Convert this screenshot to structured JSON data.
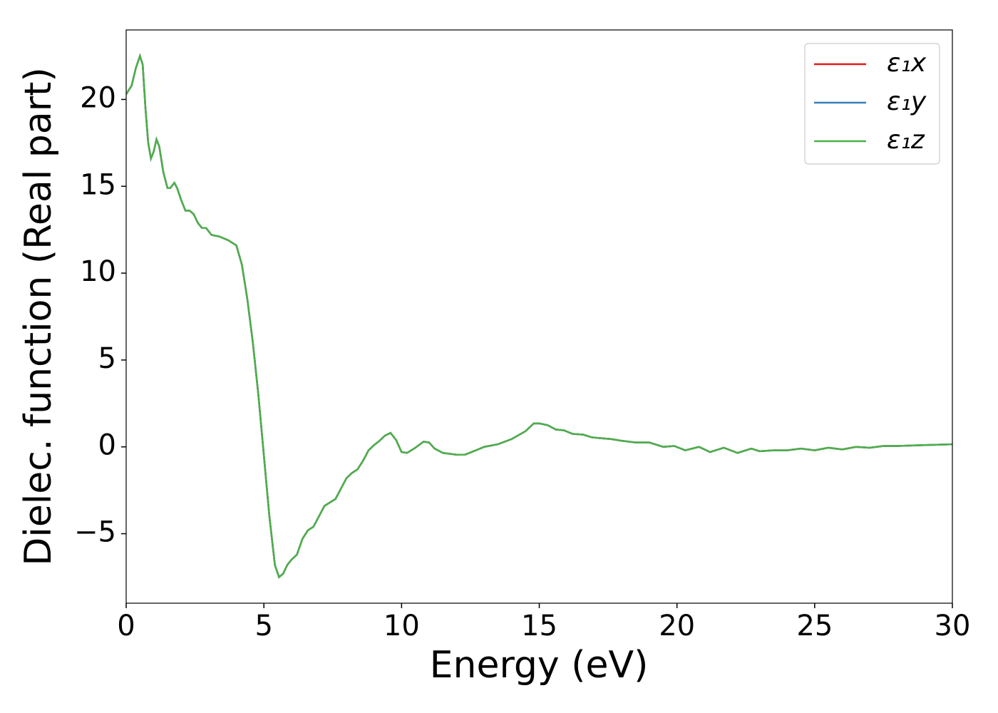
{
  "chart_data": {
    "type": "line",
    "xlabel": "Energy (eV)",
    "ylabel": "Dielec. function (Real part)",
    "xlim": [
      0,
      30
    ],
    "ylim": [
      -9,
      24
    ],
    "xticks": [
      0,
      5,
      10,
      15,
      20,
      25,
      30
    ],
    "yticks": [
      {
        "value": -5,
        "label": "−5"
      },
      0,
      5,
      10,
      15,
      20
    ],
    "grid": false,
    "legend": "upper right",
    "x": [
      0,
      0.2,
      0.35,
      0.5,
      0.6,
      0.7,
      0.8,
      0.9,
      1.0,
      1.1,
      1.2,
      1.35,
      1.5,
      1.6,
      1.75,
      1.85,
      2.0,
      2.15,
      2.3,
      2.45,
      2.6,
      2.75,
      2.9,
      3.1,
      3.4,
      3.7,
      4.0,
      4.2,
      4.4,
      4.6,
      4.8,
      5.0,
      5.2,
      5.4,
      5.55,
      5.7,
      5.85,
      6.0,
      6.2,
      6.4,
      6.6,
      6.8,
      7.0,
      7.2,
      7.4,
      7.6,
      7.8,
      8.0,
      8.2,
      8.4,
      8.6,
      8.8,
      9.0,
      9.2,
      9.4,
      9.6,
      9.8,
      10.0,
      10.2,
      10.5,
      10.8,
      11.0,
      11.2,
      11.5,
      12.0,
      12.3,
      12.7,
      13.0,
      13.5,
      14.0,
      14.5,
      14.8,
      15.0,
      15.3,
      15.6,
      15.9,
      16.2,
      16.6,
      16.9,
      17.2,
      17.6,
      18.0,
      18.5,
      19.0,
      19.5,
      19.9,
      20.3,
      20.8,
      21.2,
      21.7,
      22.2,
      22.7,
      23.0,
      23.5,
      24.0,
      24.5,
      25.0,
      25.5,
      26.0,
      26.5,
      27.0,
      27.5,
      28.0,
      29.0,
      30.0
    ],
    "series": [
      {
        "name": "ε₁x",
        "color": "#e41a1c",
        "values": [
          20.3,
          20.8,
          21.8,
          22.5,
          22.0,
          19.5,
          17.5,
          16.6,
          17.0,
          17.7,
          17.3,
          15.8,
          14.9,
          14.9,
          15.2,
          14.9,
          14.2,
          13.6,
          13.6,
          13.4,
          12.9,
          12.6,
          12.6,
          12.2,
          12.1,
          11.9,
          11.6,
          10.5,
          8.5,
          6.0,
          3.0,
          -0.5,
          -4.0,
          -6.8,
          -7.5,
          -7.3,
          -6.8,
          -6.5,
          -6.2,
          -5.3,
          -4.8,
          -4.6,
          -4.0,
          -3.4,
          -3.2,
          -3.0,
          -2.4,
          -1.8,
          -1.5,
          -1.3,
          -0.8,
          -0.2,
          0.1,
          0.35,
          0.65,
          0.8,
          0.4,
          -0.3,
          -0.35,
          -0.05,
          0.3,
          0.25,
          -0.1,
          -0.35,
          -0.45,
          -0.45,
          -0.2,
          0.0,
          0.15,
          0.45,
          0.9,
          1.35,
          1.35,
          1.25,
          1.0,
          0.95,
          0.75,
          0.7,
          0.55,
          0.5,
          0.45,
          0.35,
          0.25,
          0.25,
          0.0,
          0.05,
          -0.2,
          0.0,
          -0.3,
          -0.05,
          -0.35,
          -0.1,
          -0.25,
          -0.2,
          -0.2,
          -0.1,
          -0.2,
          -0.05,
          -0.15,
          0.0,
          -0.05,
          0.05,
          0.05,
          0.1,
          0.15
        ]
      },
      {
        "name": "ε₁y",
        "color": "#377eb8",
        "values": [
          20.3,
          20.8,
          21.8,
          22.5,
          22.0,
          19.5,
          17.5,
          16.6,
          17.0,
          17.7,
          17.3,
          15.8,
          14.9,
          14.9,
          15.2,
          14.9,
          14.2,
          13.6,
          13.6,
          13.4,
          12.9,
          12.6,
          12.6,
          12.2,
          12.1,
          11.9,
          11.6,
          10.5,
          8.5,
          6.0,
          3.0,
          -0.5,
          -4.0,
          -6.8,
          -7.5,
          -7.3,
          -6.8,
          -6.5,
          -6.2,
          -5.3,
          -4.8,
          -4.6,
          -4.0,
          -3.4,
          -3.2,
          -3.0,
          -2.4,
          -1.8,
          -1.5,
          -1.3,
          -0.8,
          -0.2,
          0.1,
          0.35,
          0.65,
          0.8,
          0.4,
          -0.3,
          -0.35,
          -0.05,
          0.3,
          0.25,
          -0.1,
          -0.35,
          -0.45,
          -0.45,
          -0.2,
          0.0,
          0.15,
          0.45,
          0.9,
          1.35,
          1.35,
          1.25,
          1.0,
          0.95,
          0.75,
          0.7,
          0.55,
          0.5,
          0.45,
          0.35,
          0.25,
          0.25,
          0.0,
          0.05,
          -0.2,
          0.0,
          -0.3,
          -0.05,
          -0.35,
          -0.1,
          -0.25,
          -0.2,
          -0.2,
          -0.1,
          -0.2,
          -0.05,
          -0.15,
          0.0,
          -0.05,
          0.05,
          0.05,
          0.1,
          0.15
        ]
      },
      {
        "name": "ε₁z",
        "color": "#4daf4a",
        "values": [
          20.3,
          20.8,
          21.8,
          22.5,
          22.0,
          19.5,
          17.5,
          16.6,
          17.0,
          17.7,
          17.3,
          15.8,
          14.9,
          14.9,
          15.2,
          14.9,
          14.2,
          13.6,
          13.6,
          13.4,
          12.9,
          12.6,
          12.6,
          12.2,
          12.1,
          11.9,
          11.6,
          10.5,
          8.5,
          6.0,
          3.0,
          -0.5,
          -4.0,
          -6.8,
          -7.5,
          -7.3,
          -6.8,
          -6.5,
          -6.2,
          -5.3,
          -4.8,
          -4.6,
          -4.0,
          -3.4,
          -3.2,
          -3.0,
          -2.4,
          -1.8,
          -1.5,
          -1.3,
          -0.8,
          -0.2,
          0.1,
          0.35,
          0.65,
          0.8,
          0.4,
          -0.3,
          -0.35,
          -0.05,
          0.3,
          0.25,
          -0.1,
          -0.35,
          -0.45,
          -0.45,
          -0.2,
          0.0,
          0.15,
          0.45,
          0.9,
          1.35,
          1.35,
          1.25,
          1.0,
          0.95,
          0.75,
          0.7,
          0.55,
          0.5,
          0.45,
          0.35,
          0.25,
          0.25,
          0.0,
          0.05,
          -0.2,
          0.0,
          -0.3,
          -0.05,
          -0.35,
          -0.1,
          -0.25,
          -0.2,
          -0.2,
          -0.1,
          -0.2,
          -0.05,
          -0.15,
          0.0,
          -0.05,
          0.05,
          0.05,
          0.1,
          0.15
        ]
      }
    ]
  }
}
